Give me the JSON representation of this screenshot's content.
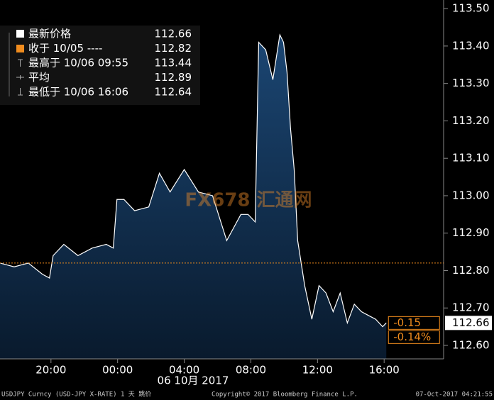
{
  "chart_data": {
    "type": "area",
    "series": [
      {
        "name": "USDJPY",
        "color": "#ffffff",
        "fill": "#0f2f52",
        "x": [
          16.94,
          17.79,
          18.64,
          19.49,
          19.91,
          20.13,
          20.77,
          21.62,
          22.47,
          23.32,
          23.74,
          23.96,
          24.38,
          25.02,
          25.87,
          26.51,
          27.15,
          28.0,
          28.85,
          29.7,
          30.55,
          31.4,
          31.83,
          32.26,
          32.47,
          32.89,
          33.32,
          33.74,
          33.96,
          34.17,
          34.38,
          34.6,
          34.81,
          35.23,
          35.66,
          36.09,
          36.51,
          36.94,
          37.36,
          37.79,
          38.21,
          38.64,
          39.06,
          39.49,
          39.91,
          40.13
        ],
        "values": [
          112.82,
          112.81,
          112.82,
          112.79,
          112.78,
          112.84,
          112.87,
          112.84,
          112.86,
          112.87,
          112.86,
          112.99,
          112.99,
          112.96,
          112.97,
          113.06,
          113.01,
          113.07,
          113.01,
          113.0,
          112.88,
          112.95,
          112.95,
          112.93,
          113.41,
          113.39,
          113.31,
          113.43,
          113.41,
          113.33,
          113.18,
          113.07,
          112.88,
          112.76,
          112.67,
          112.76,
          112.74,
          112.69,
          112.74,
          112.66,
          112.71,
          112.69,
          112.68,
          112.67,
          112.65,
          112.66
        ]
      }
    ],
    "xlim": [
      16.94,
      43.57
    ],
    "xticks": [
      {
        "value": 20,
        "label": "20:00"
      },
      {
        "value": 24,
        "label": "00:00"
      },
      {
        "value": 28,
        "label": "04:00"
      },
      {
        "value": 32,
        "label": "08:00"
      },
      {
        "value": 36,
        "label": "12:00"
      },
      {
        "value": 40,
        "label": "16:00"
      }
    ],
    "x_label": "06 10月 2017",
    "ylim": [
      112.564,
      113.523
    ],
    "yticks": [
      {
        "value": 112.6,
        "label": "112.60"
      },
      {
        "value": 112.7,
        "label": "112.70"
      },
      {
        "value": 112.8,
        "label": "112.80"
      },
      {
        "value": 112.9,
        "label": "112.90"
      },
      {
        "value": 113.0,
        "label": "113.00"
      },
      {
        "value": 113.1,
        "label": "113.10"
      },
      {
        "value": 113.2,
        "label": "113.20"
      },
      {
        "value": 113.3,
        "label": "113.30"
      },
      {
        "value": 113.4,
        "label": "113.40"
      },
      {
        "value": 113.5,
        "label": "113.50"
      }
    ],
    "prev_close": 112.82,
    "prev_close_color": "#f08c1e",
    "last_price": 112.66,
    "change": -0.15,
    "change_pct": {
      "value": -0.14,
      "label": "-0.14%"
    },
    "legend": [
      [
        "最新价格",
        112.66
      ],
      [
        "收于 10/05 ----",
        112.82
      ],
      [
        "最高于 10/06 09:55",
        113.44
      ],
      [
        "平均",
        112.89
      ],
      [
        "最低于 10/06 16:06",
        112.64
      ]
    ],
    "watermark": "FX678 汇通网",
    "footer": [
      "USDJPY Curncy (USD-JPY X-RATE) 1 天  跳价",
      "Copyright© 2017 Bloomberg Finance L.P.",
      "07-Oct-2017 04:21:55"
    ]
  }
}
